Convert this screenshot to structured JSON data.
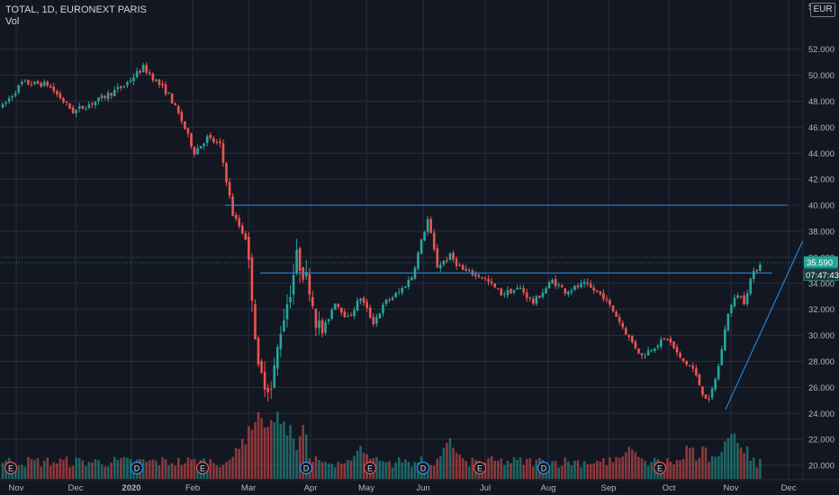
{
  "header": {
    "title": "TOTAL, 1D, EURONEXT PARIS",
    "volume_label": "Vol"
  },
  "axis": {
    "currency": "EUR",
    "top_label": "5"
  },
  "price_tag": {
    "value": "35.590",
    "countdown": "07:47:43"
  },
  "colors": {
    "up": "#26a69a",
    "down": "#ef5350",
    "background": "#131722",
    "grid": "#2a2e39",
    "line": "#2196f3",
    "tag": "#26a69a",
    "event_badge": "#ef5350",
    "dividend_badge": "#2196f3"
  },
  "chart_data": {
    "type": "candlestick",
    "ylim": [
      19,
      54
    ],
    "yticks": [
      20,
      22,
      24,
      26,
      28,
      30,
      32,
      34,
      36,
      38,
      40,
      42,
      44,
      46,
      48,
      50,
      52
    ],
    "x_labels": [
      "Nov",
      "Dec",
      "2020",
      "Feb",
      "Mar",
      "Apr",
      "May",
      "Jun",
      "Jul",
      "Aug",
      "Sep",
      "Oct",
      "Nov",
      "Dec"
    ],
    "price_path": [
      {
        "t": 0,
        "p": 47.6
      },
      {
        "t": 6,
        "p": 49.4
      },
      {
        "t": 14,
        "p": 49.3
      },
      {
        "t": 22,
        "p": 47.2
      },
      {
        "t": 30,
        "p": 48.1
      },
      {
        "t": 38,
        "p": 49.2
      },
      {
        "t": 44,
        "p": 50.6
      },
      {
        "t": 52,
        "p": 48.5
      },
      {
        "t": 56,
        "p": 46.5
      },
      {
        "t": 60,
        "p": 44.1
      },
      {
        "t": 64,
        "p": 45.2
      },
      {
        "t": 68,
        "p": 44.6
      },
      {
        "t": 72,
        "p": 39.3
      },
      {
        "t": 76,
        "p": 37.5
      },
      {
        "t": 78,
        "p": 33.2
      },
      {
        "t": 80,
        "p": 27.2
      },
      {
        "t": 84,
        "p": 25.8
      },
      {
        "t": 87,
        "p": 30.5
      },
      {
        "t": 90,
        "p": 33.5
      },
      {
        "t": 92,
        "p": 36.0
      },
      {
        "t": 96,
        "p": 33.8
      },
      {
        "t": 98,
        "p": 31.2
      },
      {
        "t": 100,
        "p": 30.2
      },
      {
        "t": 104,
        "p": 32.6
      },
      {
        "t": 108,
        "p": 31.3
      },
      {
        "t": 112,
        "p": 32.9
      },
      {
        "t": 116,
        "p": 31.0
      },
      {
        "t": 120,
        "p": 32.6
      },
      {
        "t": 124,
        "p": 33.3
      },
      {
        "t": 128,
        "p": 34.5
      },
      {
        "t": 131,
        "p": 37.2
      },
      {
        "t": 133,
        "p": 38.9
      },
      {
        "t": 136,
        "p": 35.3
      },
      {
        "t": 140,
        "p": 36.1
      },
      {
        "t": 144,
        "p": 35.0
      },
      {
        "t": 150,
        "p": 34.5
      },
      {
        "t": 156,
        "p": 33.2
      },
      {
        "t": 162,
        "p": 33.6
      },
      {
        "t": 166,
        "p": 32.5
      },
      {
        "t": 172,
        "p": 34.2
      },
      {
        "t": 176,
        "p": 33.4
      },
      {
        "t": 182,
        "p": 33.9
      },
      {
        "t": 188,
        "p": 33.0
      },
      {
        "t": 192,
        "p": 31.5
      },
      {
        "t": 196,
        "p": 29.8
      },
      {
        "t": 200,
        "p": 28.4
      },
      {
        "t": 204,
        "p": 29.2
      },
      {
        "t": 208,
        "p": 29.8
      },
      {
        "t": 212,
        "p": 28.2
      },
      {
        "t": 216,
        "p": 27.4
      },
      {
        "t": 219,
        "p": 25.6
      },
      {
        "t": 221,
        "p": 24.9
      },
      {
        "t": 224,
        "p": 27.6
      },
      {
        "t": 227,
        "p": 31.8
      },
      {
        "t": 230,
        "p": 33.2
      },
      {
        "t": 232,
        "p": 32.6
      },
      {
        "t": 234,
        "p": 34.3
      },
      {
        "t": 237,
        "p": 35.6
      }
    ],
    "volume_peaks": [
      {
        "t": 80,
        "v": 5.0
      },
      {
        "t": 82,
        "v": 3.3
      },
      {
        "t": 84,
        "v": 4.2
      },
      {
        "t": 86,
        "v": 4.9
      },
      {
        "t": 75,
        "v": 2.6
      },
      {
        "t": 112,
        "v": 2.3
      },
      {
        "t": 140,
        "v": 2.7
      },
      {
        "t": 196,
        "v": 2.2
      },
      {
        "t": 228,
        "v": 3.5
      }
    ],
    "lines": [
      {
        "name": "resistance",
        "x1": "Feb",
        "price1": 40.0,
        "x2": "Dec",
        "price2": 40.0
      },
      {
        "name": "support",
        "x1": "Mar",
        "price1": 34.8,
        "x2": "Nov",
        "price2": 34.8
      },
      {
        "name": "trend",
        "x1": "Nov",
        "price1": 24.3,
        "x2": "Dec",
        "price2": 37.3
      }
    ],
    "event_badges": [
      "E",
      "D",
      "E",
      "D",
      "E",
      "D",
      "E",
      "D",
      "E"
    ]
  }
}
